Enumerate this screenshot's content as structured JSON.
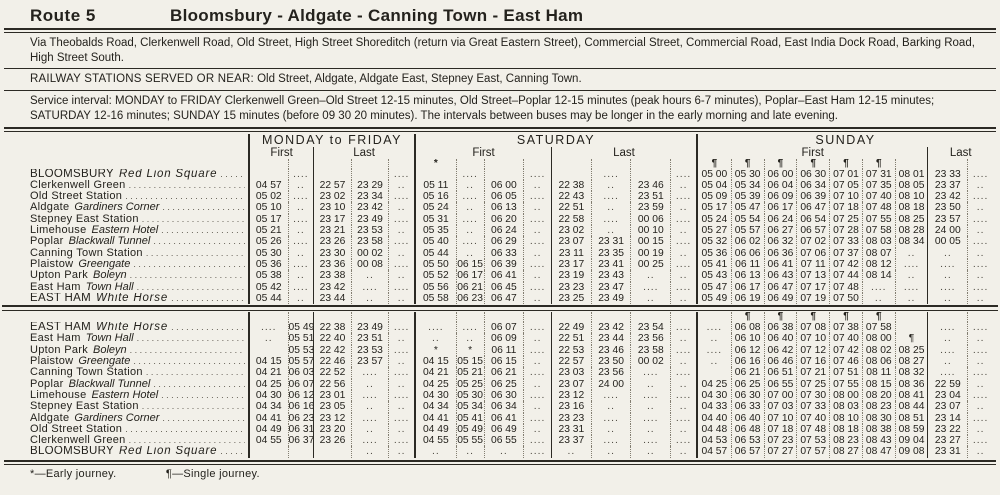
{
  "page": {
    "route": "Route 5",
    "title": "Bloomsbury - Aldgate - Canning Town - East Ham",
    "via": "Via Theobalds Road, Clerkenwell Road, Old Street, High Street Shoreditch (return via Great Eastern Street), Commercial Street, Commercial Road, East India Dock Road, Barking Road, High Street South.",
    "railway_label": "RAILWAY STATIONS SERVED OR NEAR:",
    "railway_value": "Old Street, Aldgate, Aldgate East, Stepney East, Canning Town.",
    "service": "Service interval:  MONDAY to FRIDAY Clerkenwell Green–Old Street 12-15 minutes, Old Street–Poplar 12-15 minutes (peak hours 6-7 minutes), Poplar–East Ham 12-15 minutes;  SATURDAY 12-16 minutes;  SUNDAY 15 minutes (before 09 30 20 minutes).   The intervals between buses may be longer in the early morning and late evening.",
    "footnote_early": "*—Early journey.",
    "footnote_single": "¶—Single journey."
  },
  "columns": {
    "monfri": "MONDAY to FRIDAY",
    "saturday": "SATURDAY",
    "sunday": "SUNDAY",
    "first": "First",
    "last": "Last"
  },
  "table1": {
    "marks": {
      "mf": [
        "",
        "",
        "",
        "",
        ""
      ],
      "sat": [
        "*",
        "",
        "",
        "",
        "",
        "",
        "",
        ""
      ],
      "sun": [
        "¶",
        "¶",
        "¶",
        "¶",
        "¶",
        "¶",
        "",
        "",
        ""
      ]
    },
    "rows": [
      {
        "label": "BLOOMSBURY",
        "label2": "Red Lion Square",
        "mf": [
          "",
          "....",
          "",
          "",
          "...."
        ],
        "sat": [
          "",
          "....",
          "",
          "....",
          "",
          "....",
          "",
          "...."
        ],
        "sun": [
          "05 00",
          "05 30",
          "06 00",
          "06 30",
          "07 01",
          "07 31",
          "08 01",
          "23 33",
          "...."
        ]
      },
      {
        "label": "Clerkenwell Green",
        "label2": "",
        "mf": [
          "04 57",
          "..",
          "22 57",
          "23 29",
          ".."
        ],
        "sat": [
          "05 11",
          "..",
          "06 00",
          "..",
          "22 38",
          "..",
          "23 46",
          ".."
        ],
        "sun": [
          "05 04",
          "05 34",
          "06 04",
          "06 34",
          "07 05",
          "07 35",
          "08 05",
          "23 37",
          ".."
        ]
      },
      {
        "label": "Old Street Station",
        "label2": "",
        "mf": [
          "05 02",
          "....",
          "23 02",
          "23 34",
          "...."
        ],
        "sat": [
          "05 16",
          "....",
          "06 05",
          "....",
          "22 43",
          "....",
          "23 51",
          "...."
        ],
        "sun": [
          "05 09",
          "05 39",
          "06 09",
          "06 39",
          "07 10",
          "07 40",
          "08 10",
          "23 42",
          "...."
        ]
      },
      {
        "label": "Aldgate",
        "label2": "Gardiners Corner",
        "mf": [
          "05 10",
          "..",
          "23 10",
          "23 42",
          ".."
        ],
        "sat": [
          "05 24",
          "..",
          "06 13",
          "..",
          "22 51",
          "..",
          "23 59",
          ".."
        ],
        "sun": [
          "05 17",
          "05 47",
          "06 17",
          "06 47",
          "07 18",
          "07 48",
          "08 18",
          "23 50",
          ".."
        ]
      },
      {
        "label": "Stepney East Station",
        "label2": "",
        "mf": [
          "05 17",
          "....",
          "23 17",
          "23 49",
          "...."
        ],
        "sat": [
          "05 31",
          "....",
          "06 20",
          "....",
          "22 58",
          "....",
          "00 06",
          "...."
        ],
        "sun": [
          "05 24",
          "05 54",
          "06 24",
          "06 54",
          "07 25",
          "07 55",
          "08 25",
          "23 57",
          "...."
        ]
      },
      {
        "label": "Limehouse",
        "label2": "Eastern Hotel",
        "mf": [
          "05 21",
          "..",
          "23 21",
          "23 53",
          ".."
        ],
        "sat": [
          "05 35",
          "..",
          "06 24",
          "..",
          "23 02",
          "..",
          "00 10",
          ".."
        ],
        "sun": [
          "05 27",
          "05 57",
          "06 27",
          "06 57",
          "07 28",
          "07 58",
          "08 28",
          "24 00",
          ".."
        ]
      },
      {
        "label": "Poplar",
        "label2": "Blackwall Tunnel",
        "mf": [
          "05 26",
          "....",
          "23 26",
          "23 58",
          "...."
        ],
        "sat": [
          "05 40",
          "....",
          "06 29",
          "....",
          "23 07",
          "23 31",
          "00 15",
          "...."
        ],
        "sun": [
          "05 32",
          "06 02",
          "06 32",
          "07 02",
          "07 33",
          "08 03",
          "08 34",
          "00 05",
          "...."
        ]
      },
      {
        "label": "Canning Town Station",
        "label2": "",
        "mf": [
          "05 30",
          "..",
          "23 30",
          "00 02",
          ".."
        ],
        "sat": [
          "05 44",
          "..",
          "06 33",
          "..",
          "23 11",
          "23 35",
          "00 19",
          ".."
        ],
        "sun": [
          "05 36",
          "06 06",
          "06 36",
          "07 06",
          "07 37",
          "08 07",
          "..",
          "..",
          ".."
        ]
      },
      {
        "label": "Plaistow",
        "label2": "Greengate",
        "mf": [
          "05 36",
          "....",
          "23 36",
          "00 08",
          "...."
        ],
        "sat": [
          "05 50",
          "06 15",
          "06 39",
          "....",
          "23 17",
          "23 41",
          "00 25",
          "...."
        ],
        "sun": [
          "05 41",
          "06 11",
          "06 41",
          "07 11",
          "07 42",
          "08 12",
          "....",
          "....",
          "...."
        ]
      },
      {
        "label": "Upton Park",
        "label2": "Boleyn",
        "mf": [
          "05 38",
          "..",
          "23 38",
          "..",
          ".."
        ],
        "sat": [
          "05 52",
          "06 17",
          "06 41",
          "..",
          "23 19",
          "23 43",
          "..",
          ".."
        ],
        "sun": [
          "05 43",
          "06 13",
          "06 43",
          "07 13",
          "07 44",
          "08 14",
          "..",
          "..",
          ".."
        ]
      },
      {
        "label": "East Ham",
        "label2": "Town Hall",
        "mf": [
          "05 42",
          "....",
          "23 42",
          "....",
          "...."
        ],
        "sat": [
          "05 56",
          "06 21",
          "06 45",
          "....",
          "23 23",
          "23 47",
          "....",
          "...."
        ],
        "sun": [
          "05 47",
          "06 17",
          "06 47",
          "07 17",
          "07 48",
          "....",
          "....",
          "....",
          "...."
        ]
      },
      {
        "label": "EAST HAM",
        "label2": "White Horse",
        "mf": [
          "05 44",
          "..",
          "23 44",
          "..",
          ".."
        ],
        "sat": [
          "05 58",
          "06 23",
          "06 47",
          "..",
          "23 25",
          "23 49",
          "..",
          ".."
        ],
        "sun": [
          "05 49",
          "06 19",
          "06 49",
          "07 19",
          "07 50",
          "..",
          "..",
          "..",
          ".."
        ]
      }
    ]
  },
  "table2": {
    "marks": {
      "mf": [
        "",
        "",
        "",
        "",
        ""
      ],
      "sat": [
        "",
        "",
        "",
        "",
        "",
        "",
        "",
        ""
      ],
      "sun": [
        "",
        "¶",
        "¶",
        "¶",
        "¶",
        "¶",
        "",
        "",
        ""
      ]
    },
    "rows": [
      {
        "label": "EAST HAM",
        "label2": "White Horse",
        "mf": [
          "....",
          "05 49",
          "22 38",
          "23 49",
          "...."
        ],
        "sat": [
          "....",
          "....",
          "06 07",
          "....",
          "22 49",
          "23 42",
          "23 54",
          "...."
        ],
        "sun": [
          "....",
          "06 08",
          "06 38",
          "07 08",
          "07 38",
          "07 58",
          "",
          "....",
          "...."
        ]
      },
      {
        "label": "East Ham",
        "label2": "Town Hall",
        "mf": [
          "..",
          "05 51",
          "22 40",
          "23 51",
          ".."
        ],
        "sat": [
          "..",
          "..",
          "06 09",
          "..",
          "22 51",
          "23 44",
          "23 56",
          ".."
        ],
        "sun": [
          "..",
          "06 10",
          "06 40",
          "07 10",
          "07 40",
          "08 00",
          "¶",
          "..",
          ".."
        ]
      },
      {
        "label": "Upton Park",
        "label2": "Boleyn",
        "mf": [
          "",
          "05 53",
          "22 42",
          "23 53",
          "...."
        ],
        "sat": [
          "*",
          "*",
          "06 11",
          "....",
          "22 53",
          "23 46",
          "23 58",
          "...."
        ],
        "sun": [
          "....",
          "06 12",
          "06 42",
          "07 12",
          "07 42",
          "08 02",
          "08 25",
          "....",
          "...."
        ]
      },
      {
        "label": "Plaistow",
        "label2": "Greengate",
        "mf": [
          "04 15",
          "05 57",
          "22 46",
          "23 57",
          ".."
        ],
        "sat": [
          "04 15",
          "05 15",
          "06 15",
          "..",
          "22 57",
          "23 50",
          "00 02",
          ".."
        ],
        "sun": [
          "..",
          "06 16",
          "06 46",
          "07 16",
          "07 46",
          "08 06",
          "08 27",
          "..",
          ".."
        ]
      },
      {
        "label": "Canning Town Station",
        "label2": "",
        "mf": [
          "04 21",
          "06 03",
          "22 52",
          "....",
          "...."
        ],
        "sat": [
          "04 21",
          "05 21",
          "06 21",
          "....",
          "23 03",
          "23 56",
          "....",
          "...."
        ],
        "sun": [
          "",
          "06 21",
          "06 51",
          "07 21",
          "07 51",
          "08 11",
          "08 32",
          "....",
          "...."
        ]
      },
      {
        "label": "Poplar",
        "label2": "Blackwall Tunnel",
        "mf": [
          "04 25",
          "06 07",
          "22 56",
          "..",
          ".."
        ],
        "sat": [
          "04 25",
          "05 25",
          "06 25",
          "..",
          "23 07",
          "24 00",
          "..",
          ".."
        ],
        "sun": [
          "04 25",
          "06 25",
          "06 55",
          "07 25",
          "07 55",
          "08 15",
          "08 36",
          "22 59",
          ".."
        ]
      },
      {
        "label": "Limehouse",
        "label2": "Eastern Hotel",
        "mf": [
          "04 30",
          "06 12",
          "23 01",
          "....",
          "...."
        ],
        "sat": [
          "04 30",
          "05 30",
          "06 30",
          "....",
          "23 12",
          "....",
          "....",
          "...."
        ],
        "sun": [
          "04 30",
          "06 30",
          "07 00",
          "07 30",
          "08 00",
          "08 20",
          "08 41",
          "23 04",
          "...."
        ]
      },
      {
        "label": "Stepney East Station",
        "label2": "",
        "mf": [
          "04 34",
          "06 16",
          "23 05",
          "..",
          ".."
        ],
        "sat": [
          "04 34",
          "05 34",
          "06 34",
          "..",
          "23 16",
          "..",
          "..",
          ".."
        ],
        "sun": [
          "04 33",
          "06 33",
          "07 03",
          "07 33",
          "08 03",
          "08 23",
          "08 44",
          "23 07",
          ".."
        ]
      },
      {
        "label": "Aldgate",
        "label2": "Gardiners Corner",
        "mf": [
          "04 41",
          "06 23",
          "23 12",
          "....",
          "...."
        ],
        "sat": [
          "04 41",
          "05 41",
          "06 41",
          "....",
          "23 23",
          "....",
          "....",
          "...."
        ],
        "sun": [
          "04 40",
          "06 40",
          "07 10",
          "07 40",
          "08 10",
          "08 30",
          "08 51",
          "23 14",
          "...."
        ]
      },
      {
        "label": "Old Street Station",
        "label2": "",
        "mf": [
          "04 49",
          "06 31",
          "23 20",
          "..",
          ".."
        ],
        "sat": [
          "04 49",
          "05 49",
          "06 49",
          "..",
          "23 31",
          "..",
          "..",
          ".."
        ],
        "sun": [
          "04 48",
          "06 48",
          "07 18",
          "07 48",
          "08 18",
          "08 38",
          "08 59",
          "23 22",
          ".."
        ]
      },
      {
        "label": "Clerkenwell Green",
        "label2": "",
        "mf": [
          "04 55",
          "06 37",
          "23 26",
          "....",
          "...."
        ],
        "sat": [
          "04 55",
          "05 55",
          "06 55",
          "....",
          "23 37",
          "....",
          "....",
          "...."
        ],
        "sun": [
          "04 53",
          "06 53",
          "07 23",
          "07 53",
          "08 23",
          "08 43",
          "09 04",
          "23 27",
          "...."
        ]
      },
      {
        "label": "BLOOMSBURY",
        "label2": "Red Lion Square",
        "mf": [
          "",
          "",
          "",
          "..",
          ".."
        ],
        "sat": [
          "..",
          "..",
          "..",
          "....",
          "..",
          "..",
          "..",
          ".."
        ],
        "sun": [
          "04 57",
          "06 57",
          "07 27",
          "07 57",
          "08 27",
          "08 47",
          "09 08",
          "23 31",
          ".."
        ]
      }
    ]
  }
}
